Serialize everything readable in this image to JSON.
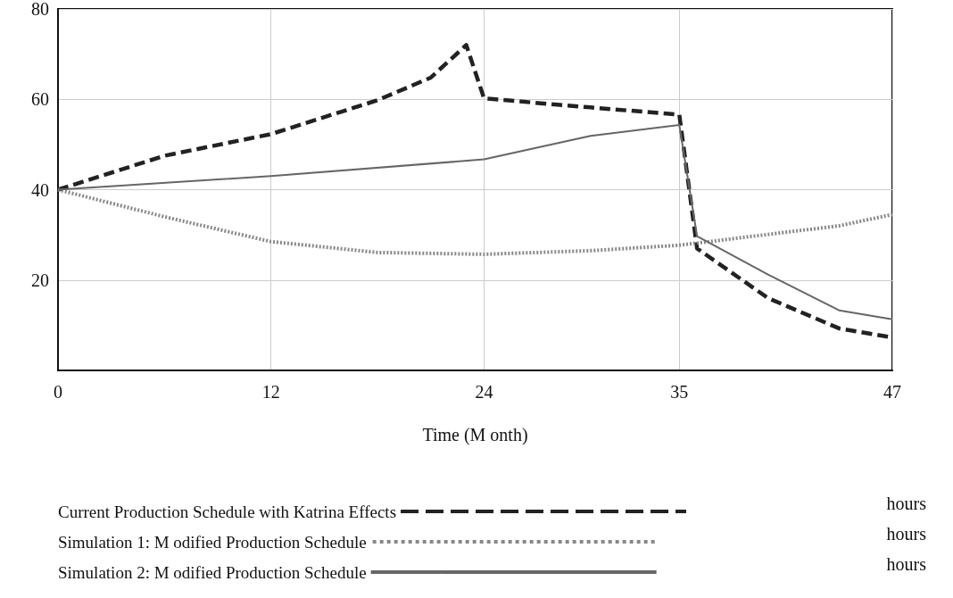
{
  "chart_data": {
    "type": "line",
    "xlabel": "Time (M onth)",
    "xlim": [
      0,
      47
    ],
    "xticks": [
      0,
      12,
      24,
      35,
      47
    ],
    "ylim": [
      0,
      80
    ],
    "yticks": [
      20,
      40,
      60,
      80
    ],
    "grid": true,
    "legend": "bottom",
    "marker": "none",
    "annotations": [
      "hours",
      "hours",
      "hours"
    ],
    "series": [
      {
        "name": "Current Production Schedule with Katrina Effects",
        "color": "#222222",
        "line_style": "dashed",
        "x": [
          0,
          6,
          12,
          18,
          21,
          23,
          24,
          30,
          35,
          36,
          40,
          44,
          47
        ],
        "values": [
          40,
          47.5,
          52.3,
          59.8,
          64.8,
          72,
          60.2,
          58.2,
          56.6,
          27,
          16,
          9.3,
          7.3
        ]
      },
      {
        "name": "Simulation 1: M odified Production Schedule",
        "color": "#888888",
        "line_style": "dotted",
        "x": [
          0,
          6,
          12,
          18,
          24,
          30,
          35,
          40,
          44,
          47
        ],
        "values": [
          40,
          34,
          28.5,
          26.1,
          25.7,
          26.5,
          27.7,
          30.1,
          32,
          34.5
        ]
      },
      {
        "name": "Simulation 2: M odified Production Schedule",
        "color": "#666666",
        "line_style": "solid",
        "x": [
          0,
          12,
          24,
          30,
          35,
          36,
          40,
          44,
          47
        ],
        "values": [
          40,
          43,
          46.7,
          51.9,
          54.3,
          29.7,
          21.2,
          13.3,
          11.3
        ]
      }
    ]
  }
}
